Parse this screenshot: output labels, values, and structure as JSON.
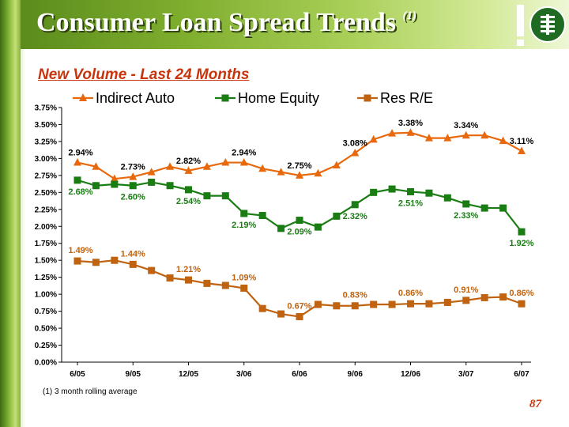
{
  "title": "Consumer Loan Spread Trends",
  "title_note": "(1)",
  "subtitle": "New Volume - Last 24 Months",
  "footnote": "(1)   3 month rolling average",
  "page_number": "87",
  "colors": {
    "indirect_auto": "#e8680c",
    "home_equity": "#1a7d14",
    "res_re": "#c06310",
    "title_band": "#7fae2e",
    "subtitle": "#c8340c"
  },
  "chart_data": {
    "type": "line",
    "categories": [
      "6/05",
      "7/05",
      "8/05",
      "9/05",
      "10/05",
      "11/05",
      "12/05",
      "1/06",
      "2/06",
      "3/06",
      "4/06",
      "5/06",
      "6/06",
      "7/06",
      "8/06",
      "9/06",
      "10/06",
      "11/06",
      "12/06",
      "1/07",
      "2/07",
      "3/07",
      "4/07",
      "5/07",
      "6/07"
    ],
    "x_tick_labels": [
      "6/05",
      "9/05",
      "12/05",
      "3/06",
      "6/06",
      "9/06",
      "12/06",
      "3/07",
      "6/07"
    ],
    "x_tick_indices": [
      0,
      3,
      6,
      9,
      12,
      15,
      18,
      21,
      24
    ],
    "y_ticks": [
      "0.00%",
      "0.25%",
      "0.50%",
      "0.75%",
      "1.00%",
      "1.25%",
      "1.50%",
      "1.75%",
      "2.00%",
      "2.25%",
      "2.50%",
      "2.75%",
      "3.00%",
      "3.25%",
      "3.50%",
      "3.75%"
    ],
    "ylim": [
      0,
      3.75
    ],
    "legend_position": "top",
    "series": [
      {
        "name": "Indirect Auto",
        "key": "indirect_auto",
        "marker": "triangle",
        "values": [
          2.94,
          2.88,
          2.7,
          2.73,
          2.8,
          2.88,
          2.82,
          2.88,
          2.94,
          2.94,
          2.85,
          2.8,
          2.75,
          2.78,
          2.9,
          3.08,
          3.28,
          3.37,
          3.38,
          3.3,
          3.3,
          3.34,
          3.34,
          3.26,
          3.11
        ]
      },
      {
        "name": "Home Equity",
        "key": "home_equity",
        "marker": "square",
        "values": [
          2.68,
          2.6,
          2.62,
          2.6,
          2.65,
          2.6,
          2.54,
          2.45,
          2.45,
          2.19,
          2.16,
          1.97,
          2.09,
          1.99,
          2.15,
          2.32,
          2.5,
          2.55,
          2.51,
          2.49,
          2.42,
          2.33,
          2.27,
          2.27,
          1.92
        ]
      },
      {
        "name": "Res R/E",
        "key": "res_re",
        "marker": "square",
        "values": [
          1.49,
          1.47,
          1.5,
          1.44,
          1.35,
          1.24,
          1.21,
          1.16,
          1.13,
          1.09,
          0.79,
          0.71,
          0.67,
          0.85,
          0.83,
          0.83,
          0.85,
          0.85,
          0.86,
          0.86,
          0.88,
          0.91,
          0.95,
          0.96,
          0.86
        ]
      }
    ],
    "data_labels": [
      {
        "series": "indirect_auto",
        "index": 0,
        "text": "2.94%"
      },
      {
        "series": "indirect_auto",
        "index": 3,
        "text": "2.73%"
      },
      {
        "series": "indirect_auto",
        "index": 6,
        "text": "2.82%"
      },
      {
        "series": "indirect_auto",
        "index": 9,
        "text": "2.94%"
      },
      {
        "series": "indirect_auto",
        "index": 12,
        "text": "2.75%"
      },
      {
        "series": "indirect_auto",
        "index": 15,
        "text": "3.08%"
      },
      {
        "series": "indirect_auto",
        "index": 18,
        "text": "3.38%"
      },
      {
        "series": "indirect_auto",
        "index": 21,
        "text": "3.34%"
      },
      {
        "series": "indirect_auto",
        "index": 24,
        "text": "3.11%"
      },
      {
        "series": "home_equity",
        "index": 0,
        "text": "2.68%"
      },
      {
        "series": "home_equity",
        "index": 3,
        "text": "2.60%"
      },
      {
        "series": "home_equity",
        "index": 6,
        "text": "2.54%"
      },
      {
        "series": "home_equity",
        "index": 9,
        "text": "2.19%"
      },
      {
        "series": "home_equity",
        "index": 12,
        "text": "2.09%"
      },
      {
        "series": "home_equity",
        "index": 15,
        "text": "2.32%"
      },
      {
        "series": "home_equity",
        "index": 18,
        "text": "2.51%"
      },
      {
        "series": "home_equity",
        "index": 21,
        "text": "2.33%"
      },
      {
        "series": "home_equity",
        "index": 24,
        "text": "1.92%"
      },
      {
        "series": "res_re",
        "index": 0,
        "text": "1.49%"
      },
      {
        "series": "res_re",
        "index": 3,
        "text": "1.44%"
      },
      {
        "series": "res_re",
        "index": 6,
        "text": "1.21%"
      },
      {
        "series": "res_re",
        "index": 9,
        "text": "1.09%"
      },
      {
        "series": "res_re",
        "index": 12,
        "text": "0.67%"
      },
      {
        "series": "res_re",
        "index": 15,
        "text": "0.83%"
      },
      {
        "series": "res_re",
        "index": 18,
        "text": "0.86%"
      },
      {
        "series": "res_re",
        "index": 21,
        "text": "0.91%"
      },
      {
        "series": "res_re",
        "index": 24,
        "text": "0.86%"
      }
    ],
    "grid": false
  }
}
